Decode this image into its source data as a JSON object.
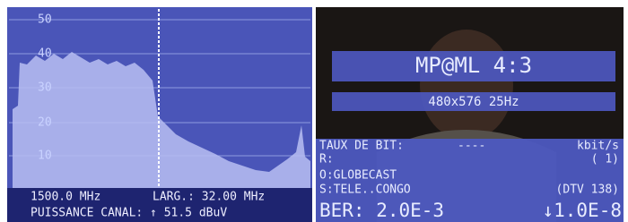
{
  "left_panel": {
    "scale_labels": [
      "50",
      "40",
      "30",
      "20",
      "10"
    ],
    "frequency": "1500.0 MHz",
    "bandwidth": "LARG.: 32.00 MHz",
    "power": "PUISSANCE CANAL: ↑ 51.5 dBuV"
  },
  "right_panel": {
    "format": "MP@ML 4:3",
    "resolution": "480x576 25Hz",
    "bit_rate_label": "TAUX DE BIT:",
    "bit_rate_value": "----",
    "bit_rate_unit": "kbit/s",
    "r_label": "R:",
    "r_value": "( 1)",
    "provider": "O:GLOBECAST",
    "service": "S:TELE..CONGO",
    "service_info": "(DTV 138)",
    "ber": "BER: 2.0E-3",
    "ber_post": "↓1.0E-8"
  }
}
